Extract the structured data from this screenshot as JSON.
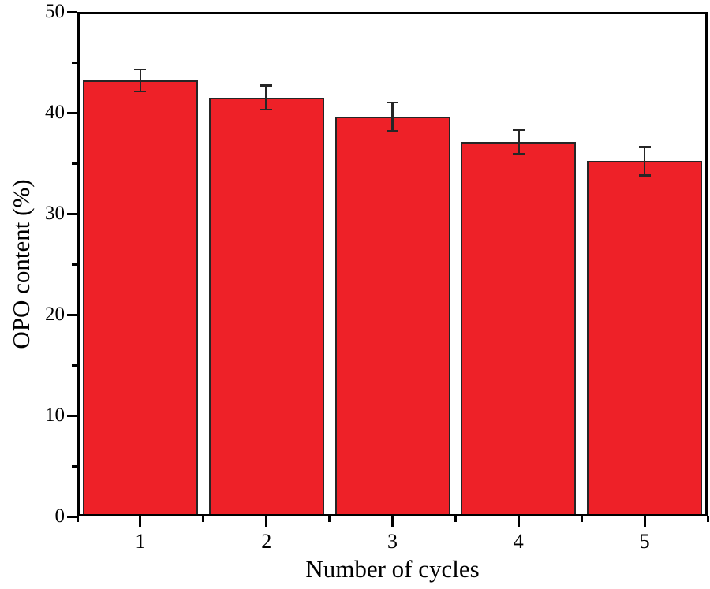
{
  "figure": {
    "background_color": "#ffffff",
    "text_color": "#000000"
  },
  "chart_data": {
    "type": "bar",
    "categories": [
      "1",
      "2",
      "3",
      "4",
      "5"
    ],
    "values": [
      43.2,
      41.5,
      39.6,
      37.1,
      35.2
    ],
    "error_bars": [
      1.1,
      1.2,
      1.4,
      1.2,
      1.4
    ],
    "title": "",
    "xlabel": "Number of cycles",
    "ylabel": "OPO content (%)",
    "ylim": [
      0,
      50
    ],
    "yticks_major": [
      0,
      10,
      20,
      30,
      40,
      50
    ],
    "yticks_minor": [
      5,
      15,
      25,
      35,
      45
    ],
    "xticks_minor_positions": [
      0.5,
      1.5,
      2.5,
      3.5,
      4.5,
      5.5
    ],
    "bar_fill_color": "#ee2128",
    "bar_border_color": "#262626",
    "error_bar_color": "#262626",
    "axis_color": "#000000",
    "grid": false,
    "legend": "none"
  }
}
